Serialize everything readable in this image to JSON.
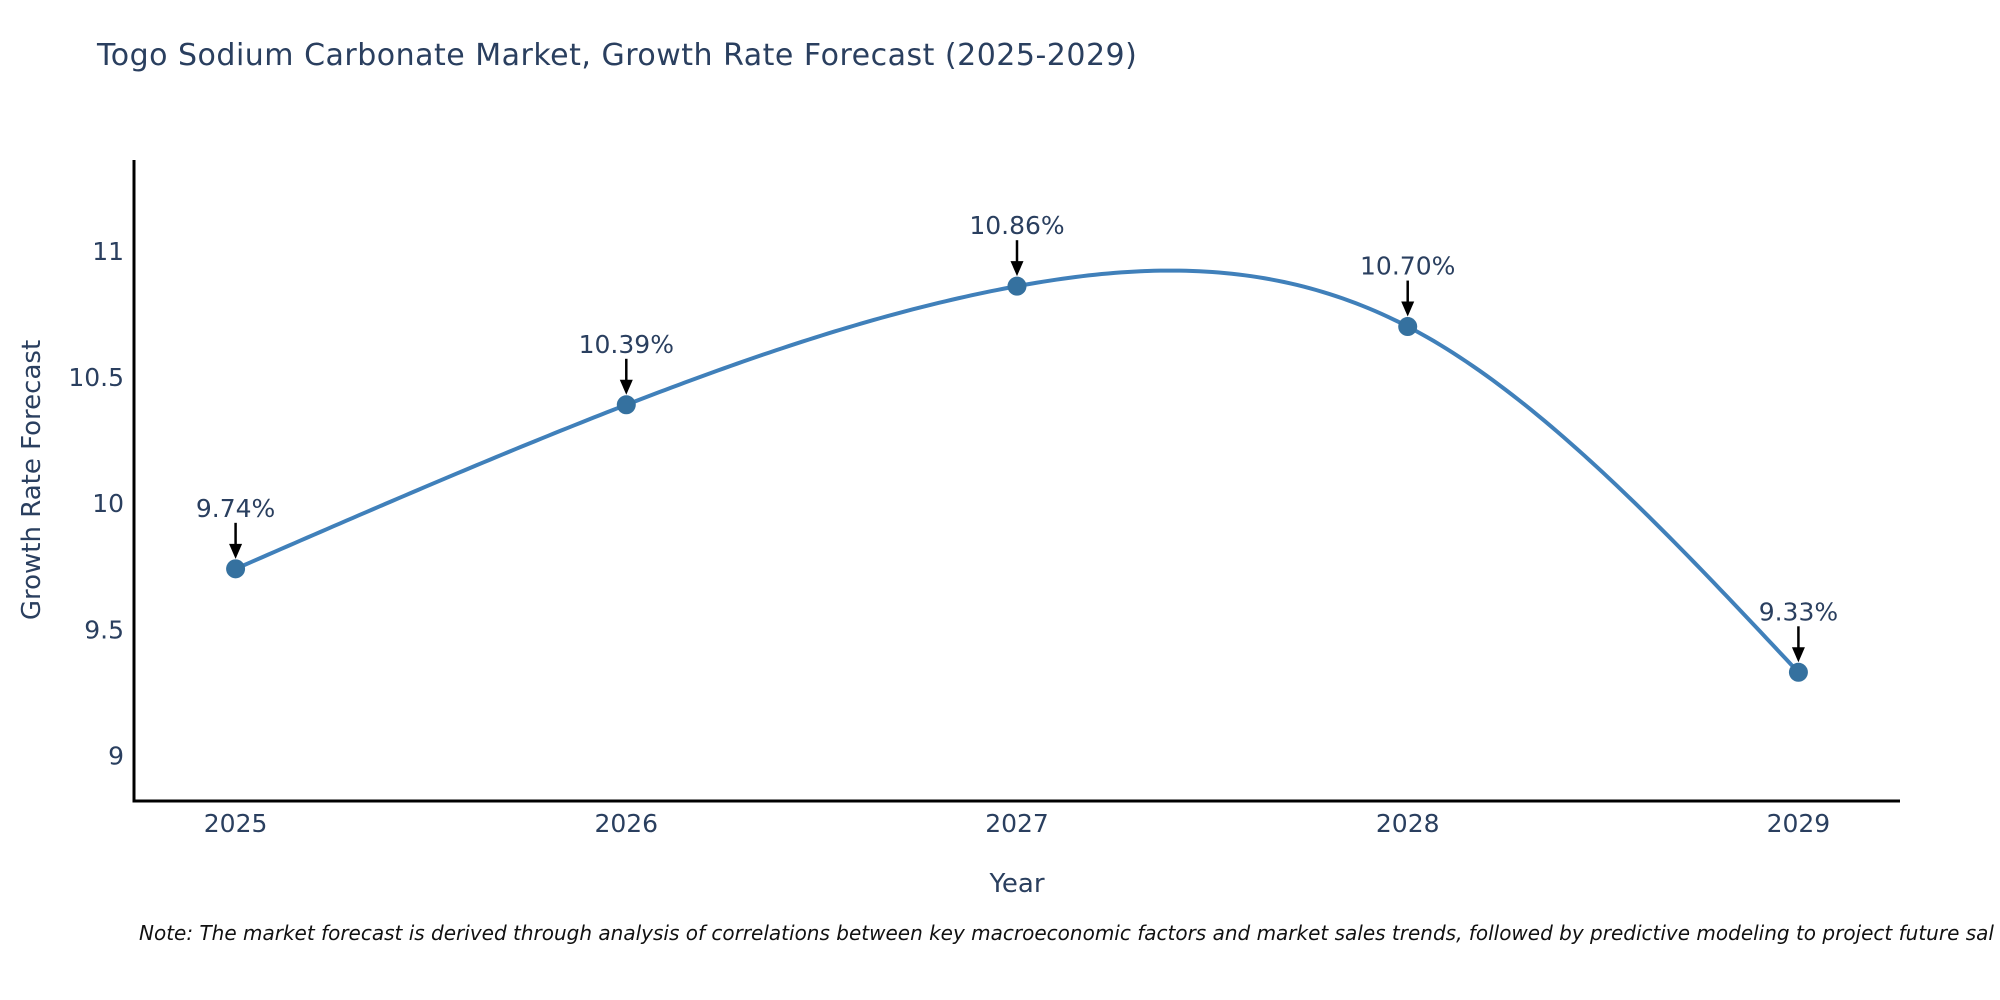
{
  "title": "Togo Sodium Carbonate Market, Growth Rate Forecast (2025-2029)",
  "note": "Note: The market forecast is derived through analysis of correlations between key macroeconomic factors and market sales trends, followed by predictive modeling to project future sal",
  "chart_data": {
    "type": "line",
    "title": "Togo Sodium Carbonate Market, Growth Rate Forecast (2025-2029)",
    "xlabel": "Year",
    "ylabel": "Growth Rate Forecast",
    "x": [
      2025,
      2026,
      2027,
      2028,
      2029
    ],
    "y": [
      9.74,
      10.39,
      10.86,
      10.7,
      9.33
    ],
    "point_labels": [
      "9.74%",
      "10.39%",
      "10.86%",
      "10.70%",
      "9.33%"
    ],
    "x_tick_labels": [
      "2025",
      "2026",
      "2027",
      "2028",
      "2029"
    ],
    "y_tick_values": [
      9,
      9.5,
      10,
      10.5,
      11
    ],
    "y_tick_labels": [
      "9",
      "9.5",
      "10",
      "10.5",
      "11"
    ],
    "x_range": [
      2024.74,
      2029.26
    ],
    "y_range": [
      8.82,
      11.36
    ],
    "grid": false,
    "legend": "none",
    "smoothing": "natural-cubic-spline",
    "colors": {
      "line": "#4080ba",
      "marker": "#35719f",
      "axis": "#000000",
      "text": "#2a3f5f",
      "annotation_arrow": "#000000"
    }
  }
}
